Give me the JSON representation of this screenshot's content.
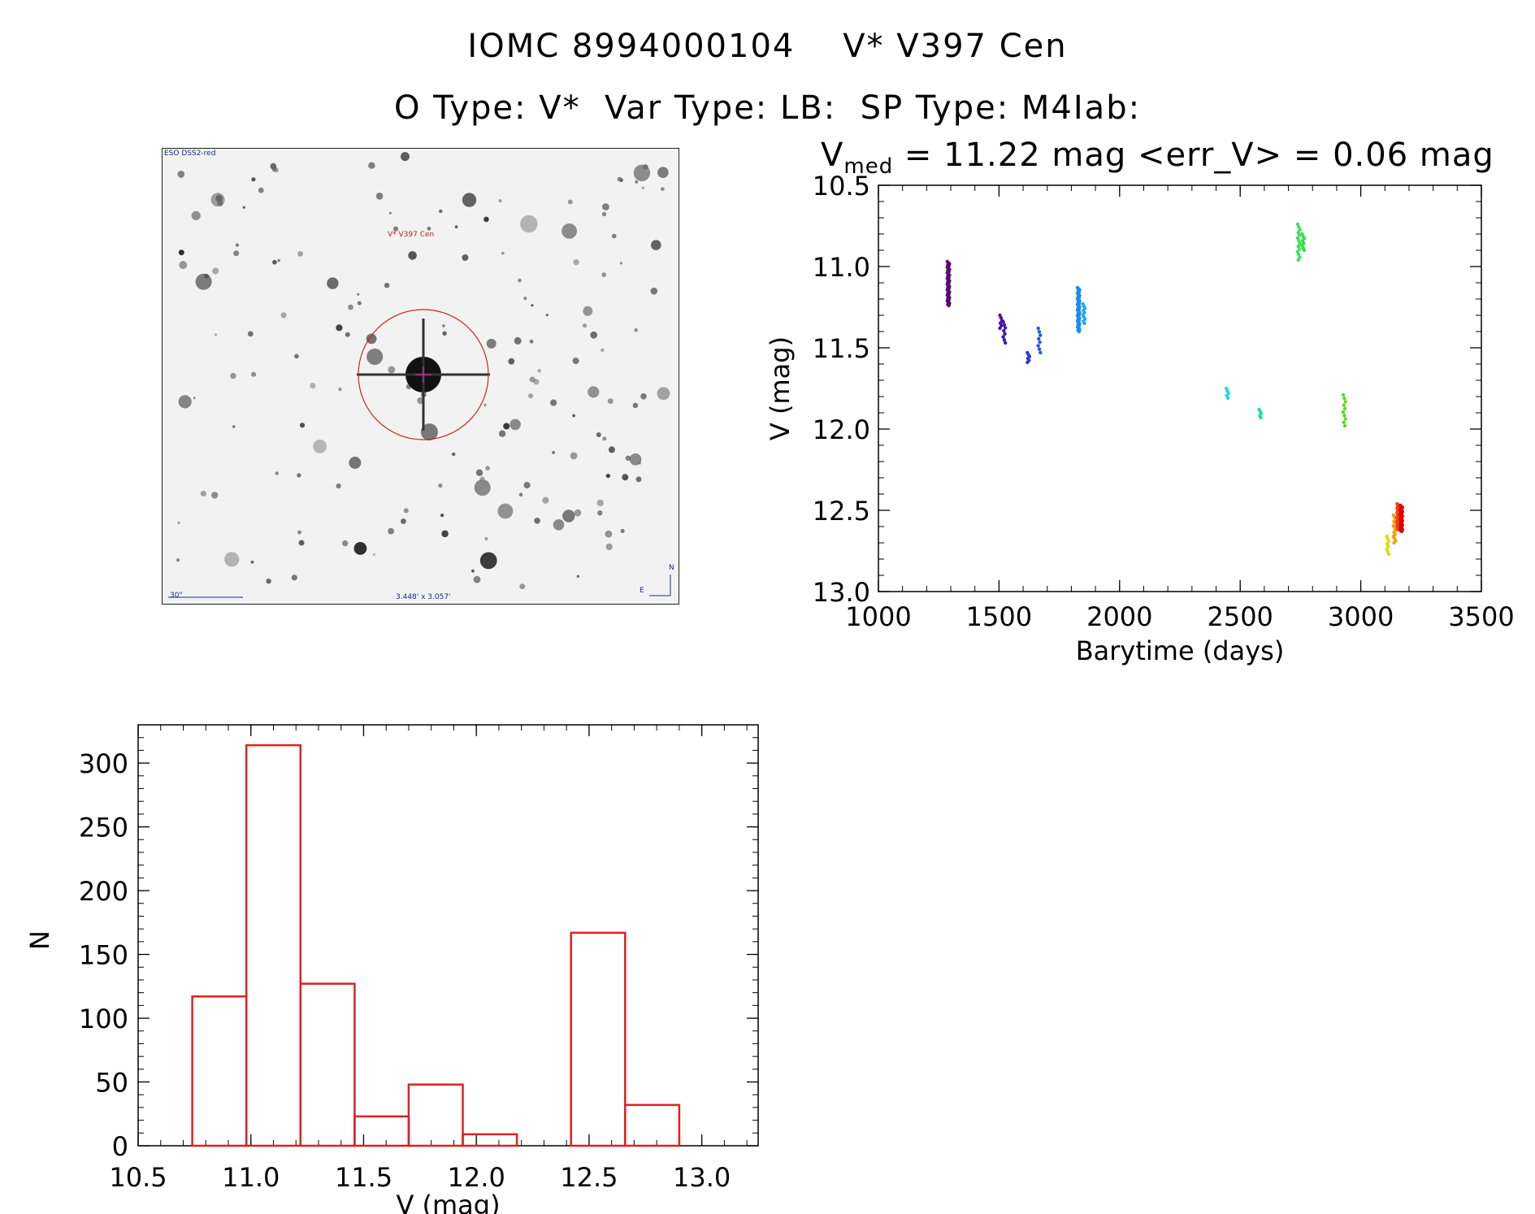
{
  "header": {
    "title_line1": "IOMC 8994000104    V* V397 Cen",
    "title_line2": "O Type: V*  Var Type: LB:  SP Type: M4Iab:",
    "stats_prefix": "V",
    "stats_sub": "med",
    "stats_text": " = 11.22 mag <err_V> = 0.06 mag"
  },
  "finder": {
    "source_label": "ESO DSS2-red",
    "target_label": "V* V397 Cen",
    "scale_label": "30\"",
    "fov_label": "3.448' x 3.057'",
    "north_label": "N",
    "east_label": "E",
    "colors": {
      "circle": "#cc2222",
      "marker": "#b03090",
      "text": "#1a2a8a"
    }
  },
  "chart_data": [
    {
      "type": "scatter",
      "xlabel": "Barytime (days)",
      "ylabel": "V (mag)",
      "xlim": [
        1000,
        3500
      ],
      "ylim": [
        13.0,
        10.5
      ],
      "y_inverted": true,
      "xticks": [
        1000,
        1500,
        2000,
        2500,
        3000,
        3500
      ],
      "yticks": [
        10.5,
        11.0,
        11.5,
        12.0,
        12.5,
        13.0
      ],
      "ytick_labels": [
        "10.5",
        "11.0",
        "11.5",
        "12.0",
        "12.5",
        "13.0"
      ],
      "groups": [
        {
          "x": 1290,
          "y_min": 10.97,
          "y_max": 11.24,
          "color": "#5b0a6e",
          "n": 40
        },
        {
          "x": 1508,
          "y_min": 11.3,
          "y_max": 11.38,
          "color": "#4a12a0",
          "n": 6
        },
        {
          "x": 1522,
          "y_min": 11.34,
          "y_max": 11.47,
          "color": "#3b1ab8",
          "n": 8
        },
        {
          "x": 1622,
          "y_min": 11.53,
          "y_max": 11.59,
          "color": "#2a3ad8",
          "n": 6
        },
        {
          "x": 1667,
          "y_min": 11.38,
          "y_max": 11.53,
          "color": "#2a55e0",
          "n": 8
        },
        {
          "x": 1830,
          "y_min": 11.13,
          "y_max": 11.4,
          "color": "#1a8ee8",
          "n": 40
        },
        {
          "x": 1852,
          "y_min": 11.23,
          "y_max": 11.35,
          "color": "#20aaf0",
          "n": 10
        },
        {
          "x": 2447,
          "y_min": 11.75,
          "y_max": 11.81,
          "color": "#20dcd2",
          "n": 5
        },
        {
          "x": 2583,
          "y_min": 11.88,
          "y_max": 11.93,
          "color": "#20e0a8",
          "n": 5
        },
        {
          "x": 2743,
          "y_min": 10.74,
          "y_max": 10.96,
          "color": "#40e060",
          "n": 14
        },
        {
          "x": 2761,
          "y_min": 10.8,
          "y_max": 10.9,
          "color": "#38e040",
          "n": 8
        },
        {
          "x": 2932,
          "y_min": 11.79,
          "y_max": 11.98,
          "color": "#60d820",
          "n": 10
        },
        {
          "x": 3112,
          "y_min": 12.66,
          "y_max": 12.77,
          "color": "#d8e010",
          "n": 8
        },
        {
          "x": 3140,
          "y_min": 12.53,
          "y_max": 12.7,
          "color": "#f0a010",
          "n": 14
        },
        {
          "x": 3155,
          "y_min": 12.46,
          "y_max": 12.62,
          "color": "#f04010",
          "n": 30
        },
        {
          "x": 3168,
          "y_min": 12.47,
          "y_max": 12.63,
          "color": "#e00000",
          "n": 30
        }
      ]
    },
    {
      "type": "bar",
      "subtype": "histogram",
      "xlabel": "V (mag)",
      "ylabel": "N",
      "xlim": [
        10.5,
        13.25
      ],
      "ylim": [
        0,
        330
      ],
      "xticks": [
        10.5,
        11.0,
        11.5,
        12.0,
        12.5,
        13.0
      ],
      "xtick_labels": [
        "10.5",
        "11.0",
        "11.5",
        "12.0",
        "12.5",
        "13.0"
      ],
      "yticks": [
        0,
        50,
        100,
        150,
        200,
        250,
        300
      ],
      "bin_edges": [
        10.74,
        10.98,
        11.22,
        11.46,
        11.7,
        11.94,
        12.18,
        12.42,
        12.66,
        12.9
      ],
      "counts": [
        117,
        314,
        127,
        23,
        48,
        9,
        0,
        167,
        32
      ],
      "color": "#e02020"
    }
  ]
}
